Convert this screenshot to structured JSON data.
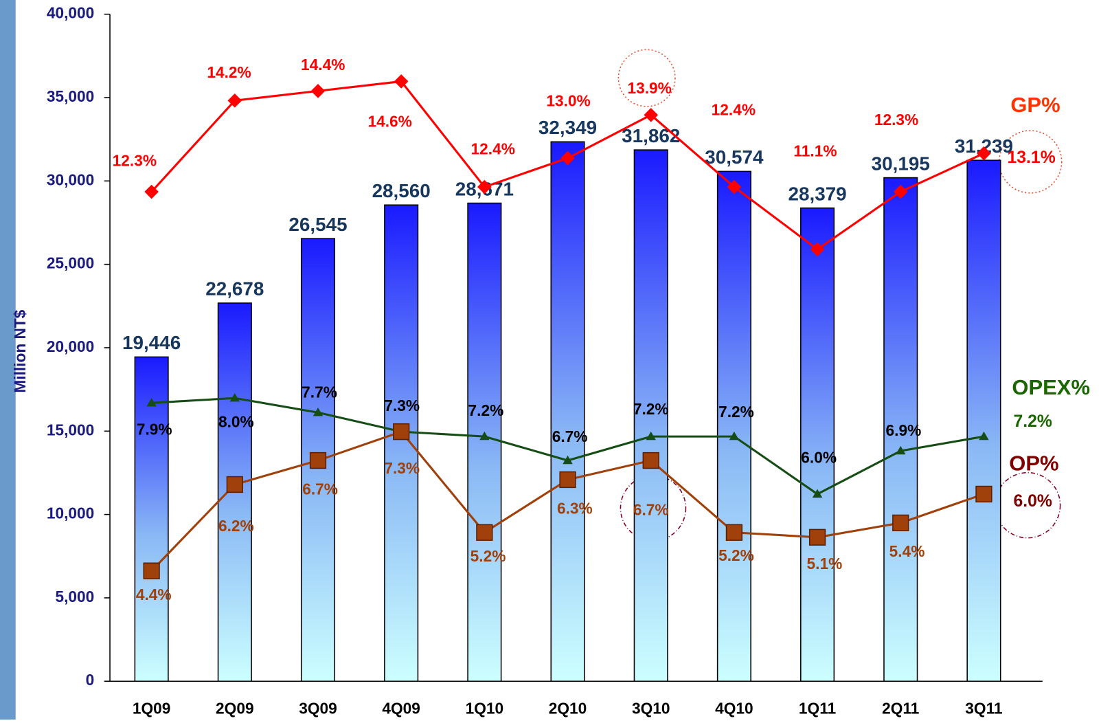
{
  "chart_data": {
    "type": "bar",
    "ylabel": "Million NT$",
    "categories": [
      "1Q09",
      "2Q09",
      "3Q09",
      "4Q09",
      "1Q10",
      "2Q10",
      "3Q10",
      "4Q10",
      "1Q11",
      "2Q11",
      "3Q11"
    ],
    "values": [
      19446,
      22678,
      26545,
      28560,
      28671,
      32349,
      31862,
      30574,
      28379,
      30195,
      31239
    ],
    "value_labels": [
      "19,446",
      "22,678",
      "26,545",
      "28,560",
      "28,671",
      "32,349",
      "31,862",
      "30,574",
      "28,379",
      "30,195",
      "31,239"
    ],
    "color": "#1a1aff",
    "ylim": [
      0,
      40000
    ],
    "yticks": [
      0,
      {
        "value": 5000,
        "label": "5,000"
      },
      {
        "value": 10000,
        "label": "10,000"
      },
      {
        "value": 15000,
        "label": "15,000"
      },
      {
        "value": 20000,
        "label": "20,000"
      },
      {
        "value": 25000,
        "label": "25,000"
      },
      {
        "value": 30000,
        "label": "30,000"
      },
      {
        "value": 35000,
        "label": "35,000"
      },
      {
        "value": 40000,
        "label": "40,000"
      }
    ],
    "y2lim": [
      2.1,
      16.0
    ],
    "series": [
      {
        "name": "GP%",
        "color": "#ff0000",
        "axis": "y2",
        "marker": "diamond",
        "values": [
          12.3,
          14.2,
          14.4,
          14.6,
          12.4,
          13.0,
          13.9,
          12.4,
          11.1,
          12.3,
          13.1
        ],
        "value_labels": [
          "12.3%",
          "14.2%",
          "14.4%",
          "14.6%",
          "12.4%",
          "13.0%",
          "13.9%",
          "12.4%",
          "11.1%",
          "12.3%",
          "13.1%"
        ]
      },
      {
        "name": "OPEX%",
        "color": "#154d15",
        "axis": "y2",
        "marker": "triangle",
        "values": [
          7.9,
          8.0,
          7.7,
          7.3,
          7.2,
          6.7,
          7.2,
          7.2,
          6.0,
          6.9,
          7.2
        ],
        "value_labels": [
          "7.9%",
          "8.0%",
          "7.7%",
          "7.3%",
          "7.2%",
          "6.7%",
          "7.2%",
          "7.2%",
          "6.0%",
          "6.9%",
          "7.2%"
        ]
      },
      {
        "name": "OP%",
        "color": "#a0400a",
        "axis": "y2",
        "marker": "square",
        "values": [
          4.4,
          6.2,
          6.7,
          7.3,
          5.2,
          6.3,
          6.7,
          5.2,
          5.1,
          5.4,
          6.0
        ],
        "value_labels": [
          "4.4%",
          "6.2%",
          "6.7%",
          "7.3%",
          "5.2%",
          "6.3%",
          "6.7%",
          "5.2%",
          "5.1%",
          "5.4%",
          "6.0%"
        ]
      }
    ]
  }
}
